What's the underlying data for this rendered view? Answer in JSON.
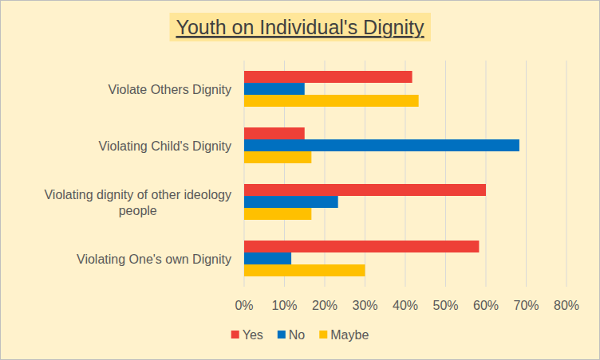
{
  "chart_data": {
    "type": "bar",
    "orientation": "horizontal",
    "title": "Youth on Individual's Dignity",
    "categories": [
      "Violate Others Dignity",
      "Violating Child's Dignity",
      "Violating dignity of other ideology people",
      "Violating One's own Dignity"
    ],
    "series": [
      {
        "name": "Yes",
        "color": "#ee4037",
        "values": [
          41.7,
          15,
          60,
          58.3
        ]
      },
      {
        "name": "No",
        "color": "#0070c0",
        "values": [
          15,
          68.3,
          23.3,
          11.7
        ]
      },
      {
        "name": "Maybe",
        "color": "#ffc000",
        "values": [
          43.3,
          16.7,
          16.7,
          30
        ]
      }
    ],
    "xlim": [
      0,
      80
    ],
    "xticks": [
      {
        "value": 0,
        "label": "0%"
      },
      {
        "value": 10,
        "label": "10%"
      },
      {
        "value": 20,
        "label": "20%"
      },
      {
        "value": 30,
        "label": "30%"
      },
      {
        "value": 40,
        "label": "40%"
      },
      {
        "value": 50,
        "label": "50%"
      },
      {
        "value": 60,
        "label": "60%"
      },
      {
        "value": 70,
        "label": "70%"
      },
      {
        "value": 80,
        "label": "80%"
      }
    ],
    "grid": true,
    "legend": "bottom"
  }
}
